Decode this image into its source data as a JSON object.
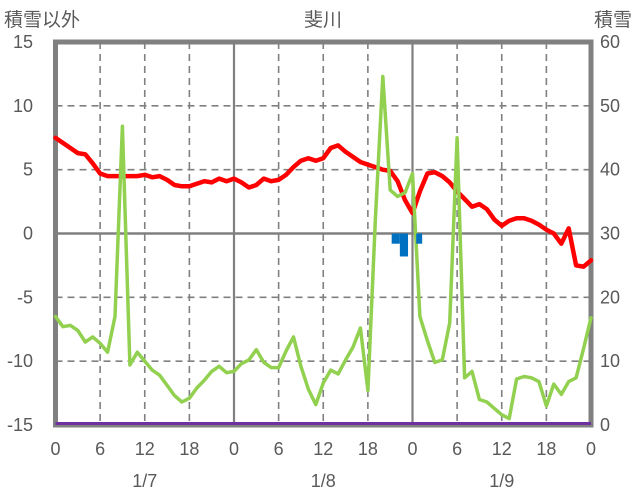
{
  "header": {
    "left_axis_title": "積雪以外",
    "chart_title": "斐川",
    "right_axis_title": "積雪"
  },
  "chart_data": {
    "type": "line",
    "title": "斐川",
    "station": "斐川",
    "x_unit": "hour",
    "x_range": [
      0,
      72
    ],
    "x_tick_interval": 6,
    "x_tick_labels": [
      "0",
      "6",
      "12",
      "18",
      "0",
      "6",
      "12",
      "18",
      "0",
      "6",
      "12",
      "18",
      "0"
    ],
    "day_labels": [
      {
        "label": "1/7",
        "hour": 12
      },
      {
        "label": "1/8",
        "hour": 36
      },
      {
        "label": "1/9",
        "hour": 60
      }
    ],
    "left_axis": {
      "label": "積雪以外",
      "min": -15,
      "max": 15,
      "ticks": [
        15,
        10,
        5,
        0,
        -5,
        -10,
        -15
      ]
    },
    "right_axis": {
      "label": "積雪",
      "min": 0,
      "max": 60,
      "ticks": [
        60,
        50,
        40,
        30,
        20,
        10,
        0
      ]
    },
    "grid": {
      "h_dashed_at_left_values": [
        10,
        5,
        -5,
        -10
      ],
      "h_solid_at_left_values": [
        0
      ],
      "v_solid_at_hours": [
        24,
        48
      ],
      "v_dashed_every": 6
    },
    "series": [
      {
        "name": "red-line",
        "type": "line",
        "axis": "left",
        "color": "#FF0000",
        "width": 4.5,
        "values": [
          7.5,
          7.1,
          6.7,
          6.3,
          6.2,
          5.5,
          4.7,
          4.5,
          4.5,
          4.5,
          4.5,
          4.5,
          4.6,
          4.4,
          4.5,
          4.2,
          3.8,
          3.7,
          3.7,
          3.9,
          4.1,
          4.0,
          4.3,
          4.1,
          4.3,
          4.0,
          3.6,
          3.8,
          4.3,
          4.1,
          4.2,
          4.6,
          5.2,
          5.7,
          5.9,
          5.7,
          5.9,
          6.7,
          6.9,
          6.4,
          6.0,
          5.6,
          5.4,
          5.2,
          5.0,
          4.9,
          4.1,
          2.6,
          1.6,
          3.3,
          4.7,
          4.8,
          4.5,
          4.0,
          3.3,
          2.7,
          2.1,
          2.3,
          1.9,
          1.1,
          0.6,
          1.0,
          1.2,
          1.2,
          1.0,
          0.7,
          0.3,
          0.0,
          -0.8,
          0.4,
          -2.5,
          -2.6,
          -2.1
        ]
      },
      {
        "name": "green-line",
        "type": "line",
        "axis": "left",
        "color": "#92D050",
        "width": 3.5,
        "values": [
          -6.5,
          -7.3,
          -7.2,
          -7.6,
          -8.5,
          -8.1,
          -8.6,
          -9.3,
          -6.5,
          8.4,
          -10.3,
          -9.3,
          -10.0,
          -10.7,
          -11.1,
          -11.9,
          -12.7,
          -13.2,
          -12.9,
          -12.1,
          -11.5,
          -10.8,
          -10.4,
          -10.9,
          -10.8,
          -10.2,
          -9.9,
          -9.1,
          -10.1,
          -10.5,
          -10.5,
          -9.2,
          -8.1,
          -10.4,
          -12.2,
          -13.4,
          -11.7,
          -10.7,
          -11.0,
          -9.9,
          -8.9,
          -7.4,
          -12.3,
          1.0,
          12.3,
          3.4,
          2.9,
          3.2,
          4.7,
          -6.5,
          -8.4,
          -10.1,
          -9.9,
          -7.0,
          7.5,
          -11.3,
          -10.8,
          -13.0,
          -13.2,
          -13.7,
          -14.2,
          -14.5,
          -11.4,
          -11.2,
          -11.3,
          -11.6,
          -13.5,
          -11.8,
          -12.6,
          -11.6,
          -11.3,
          -9.0,
          -6.6
        ]
      },
      {
        "name": "blue-bars",
        "type": "bar",
        "axis": "left",
        "color": "#0070C0",
        "bars": [
          {
            "start": 45.2,
            "end": 46.3,
            "value": -0.8
          },
          {
            "start": 46.3,
            "end": 47.4,
            "value": -1.8
          },
          {
            "start": 48.5,
            "end": 49.3,
            "value": -0.8
          }
        ]
      },
      {
        "name": "purple-line",
        "type": "constant-line",
        "axis": "right",
        "color": "#7030A0",
        "width": 3,
        "constant": 0
      }
    ],
    "colors": {
      "grid": "#808080",
      "border": "#808080",
      "text": "#595959",
      "background": "#FFFFFF"
    }
  }
}
